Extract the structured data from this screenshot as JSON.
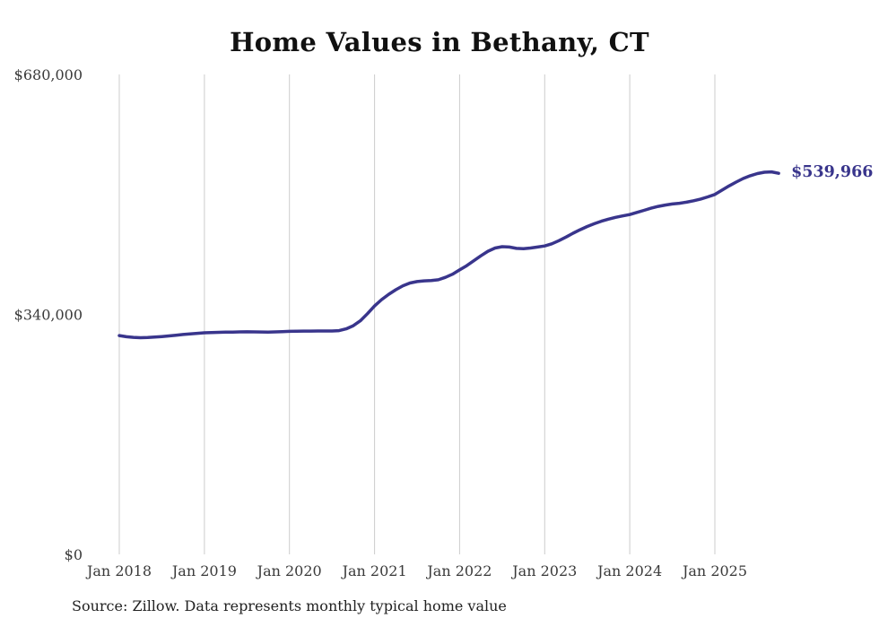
{
  "title": "Home Values in Bethany, CT",
  "source_note": "Source: Zillow. Data represents monthly typical home value",
  "colors": {
    "line": "#39358c",
    "grid": "#cccccc",
    "title_text": "#111111",
    "axis_text": "#3a3a3a",
    "end_label_text": "#39358c",
    "background": "#ffffff"
  },
  "chart_data": {
    "type": "line",
    "title": "Home Values in Bethany, CT",
    "xlabel": "",
    "ylabel": "",
    "ylim": [
      0,
      680000
    ],
    "grid": "vertical-only",
    "legend": "none",
    "unit": "USD",
    "end_label": "$539,966",
    "last_value": 539966,
    "y_ticks": [
      {
        "label": "$680,000",
        "value": 680000
      },
      {
        "label": "$340,000",
        "value": 340000
      },
      {
        "label": "$0",
        "value": 0
      }
    ],
    "x_ticks": [
      {
        "label": "Jan 2018",
        "month_index": 0
      },
      {
        "label": "Jan 2019",
        "month_index": 12
      },
      {
        "label": "Jan 2020",
        "month_index": 24
      },
      {
        "label": "Jan 2021",
        "month_index": 36
      },
      {
        "label": "Jan 2022",
        "month_index": 48
      },
      {
        "label": "Jan 2023",
        "month_index": 60
      },
      {
        "label": "Jan 2024",
        "month_index": 72
      },
      {
        "label": "Jan 2025",
        "month_index": 84
      }
    ],
    "x_months": [
      "Jan 2018",
      "Feb 2018",
      "Mar 2018",
      "Apr 2018",
      "May 2018",
      "Jun 2018",
      "Jul 2018",
      "Aug 2018",
      "Sep 2018",
      "Oct 2018",
      "Nov 2018",
      "Dec 2018",
      "Jan 2019",
      "Feb 2019",
      "Mar 2019",
      "Apr 2019",
      "May 2019",
      "Jun 2019",
      "Jul 2019",
      "Aug 2019",
      "Sep 2019",
      "Oct 2019",
      "Nov 2019",
      "Dec 2019",
      "Jan 2020",
      "Feb 2020",
      "Mar 2020",
      "Apr 2020",
      "May 2020",
      "Jun 2020",
      "Jul 2020",
      "Aug 2020",
      "Sep 2020",
      "Oct 2020",
      "Nov 2020",
      "Dec 2020",
      "Jan 2021",
      "Feb 2021",
      "Mar 2021",
      "Apr 2021",
      "May 2021",
      "Jun 2021",
      "Jul 2021",
      "Aug 2021",
      "Sep 2021",
      "Oct 2021",
      "Nov 2021",
      "Dec 2021",
      "Jan 2022",
      "Feb 2022",
      "Mar 2022",
      "Apr 2022",
      "May 2022",
      "Jun 2022",
      "Jul 2022",
      "Aug 2022",
      "Sep 2022",
      "Oct 2022",
      "Nov 2022",
      "Dec 2022",
      "Jan 2023",
      "Feb 2023",
      "Mar 2023",
      "Apr 2023",
      "May 2023",
      "Jun 2023",
      "Jul 2023",
      "Aug 2023",
      "Sep 2023",
      "Oct 2023",
      "Nov 2023",
      "Dec 2023",
      "Jan 2024",
      "Feb 2024",
      "Mar 2024",
      "Apr 2024",
      "May 2024",
      "Jun 2024",
      "Jul 2024",
      "Aug 2024",
      "Sep 2024",
      "Oct 2024",
      "Nov 2024",
      "Dec 2024",
      "Jan 2025",
      "Feb 2025",
      "Mar 2025",
      "Apr 2025",
      "May 2025",
      "Jun 2025",
      "Jul 2025",
      "Aug 2025",
      "Sep 2025",
      "Oct 2025"
    ],
    "values": [
      310000,
      308400,
      307400,
      307000,
      307200,
      307800,
      308600,
      309500,
      310500,
      311500,
      312400,
      313200,
      314000,
      314300,
      314600,
      314800,
      315000,
      315200,
      315300,
      315200,
      315100,
      315000,
      315200,
      315600,
      316000,
      316200,
      316300,
      316400,
      316500,
      316500,
      316500,
      317000,
      319500,
      324000,
      331000,
      341000,
      352000,
      361000,
      368500,
      375000,
      380500,
      384500,
      386500,
      387500,
      388000,
      389000,
      392500,
      397000,
      403000,
      409000,
      416000,
      423000,
      429500,
      434000,
      436000,
      435500,
      433500,
      433000,
      434000,
      435500,
      437000,
      440000,
      444500,
      449500,
      455000,
      460000,
      464500,
      468500,
      472000,
      475000,
      477500,
      479500,
      481500,
      484500,
      487500,
      490500,
      493000,
      495000,
      496500,
      497500,
      499000,
      501000,
      503500,
      506500,
      510000,
      516000,
      522000,
      527500,
      532500,
      536500,
      539500,
      541500,
      542000,
      539966
    ]
  }
}
